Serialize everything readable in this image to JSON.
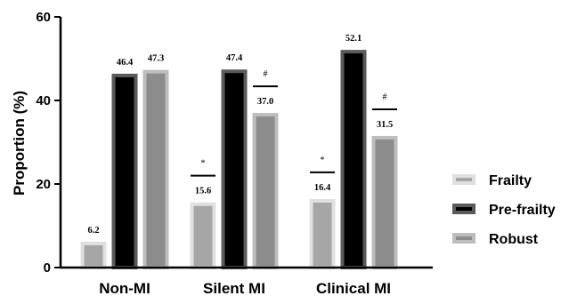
{
  "chart_data": {
    "type": "bar",
    "categories": [
      "Non-MI",
      "Silent MI",
      "Clinical MI"
    ],
    "series": [
      {
        "name": "Frailty",
        "values": [
          6.2,
          15.6,
          16.4
        ],
        "fill": "#a6a6a6",
        "border": "#e0e0e0"
      },
      {
        "name": "Pre-frailty",
        "values": [
          46.4,
          47.4,
          52.1
        ],
        "fill": "#000000",
        "border": "#5a5a5a"
      },
      {
        "name": "Robust",
        "values": [
          47.3,
          37.0,
          31.5
        ],
        "fill": "#8c8c8c",
        "border": "#bdbdbd"
      }
    ],
    "value_labels": [
      [
        "6.2",
        "15.6",
        "16.4"
      ],
      [
        "46.4",
        "47.4",
        "52.1"
      ],
      [
        "47.3",
        "37.0",
        "31.5"
      ]
    ],
    "significance": [
      {
        "category": 1,
        "series": 0,
        "mark": "*"
      },
      {
        "category": 2,
        "series": 0,
        "mark": "*"
      },
      {
        "category": 1,
        "series": 2,
        "mark": "#"
      },
      {
        "category": 2,
        "series": 2,
        "mark": "#"
      }
    ],
    "ylabel": "Proportion (%)",
    "xlabel": "",
    "ylim": [
      0,
      60
    ],
    "yticks": [
      0,
      20,
      40,
      60
    ],
    "ytick_labels": [
      "0",
      "20",
      "40",
      "60"
    ],
    "grid": false,
    "legend_position": "right"
  }
}
